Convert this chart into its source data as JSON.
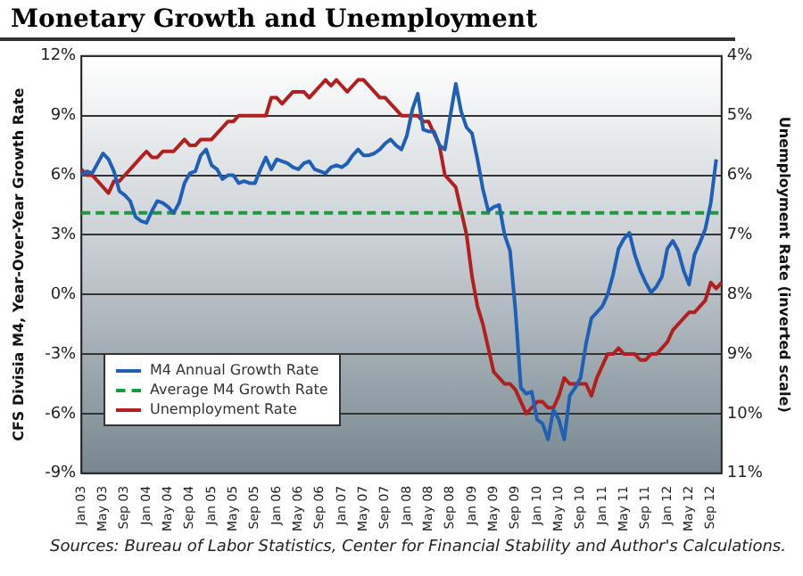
{
  "chart_data": {
    "type": "line",
    "title": "Monetary Growth and Unemployment",
    "ylabel": "CFS Divisia M4, Year-Over-Year Growth Rate",
    "y2label": "Unemployment Rate (inverted scale)",
    "annotations": [
      "Sources: Bureau of Labor Statistics, Center for Financial Stability and Author's Calculations."
    ],
    "categories": [
      "Jan 03",
      null,
      null,
      null,
      "May 03",
      null,
      null,
      null,
      "Sep 03",
      null,
      null,
      null,
      "Jan 04",
      null,
      null,
      null,
      "May 04",
      null,
      null,
      null,
      "Sep 04",
      null,
      null,
      null,
      "Jan 05",
      null,
      null,
      null,
      "May 05",
      null,
      null,
      null,
      "Sep 05",
      null,
      null,
      null,
      "Jan 06",
      null,
      null,
      null,
      "May 06",
      null,
      null,
      null,
      "Sep 06",
      null,
      null,
      null,
      "Jan 07",
      null,
      null,
      null,
      "May 07",
      null,
      null,
      null,
      "Sep 07",
      null,
      null,
      null,
      "Jan 08",
      null,
      null,
      null,
      "May 08",
      null,
      null,
      null,
      "Sep 08",
      null,
      null,
      null,
      "Jan 09",
      null,
      null,
      null,
      "May 09",
      null,
      null,
      null,
      "Sep 09",
      null,
      null,
      null,
      "Jan 10",
      null,
      null,
      null,
      "May 10",
      null,
      null,
      null,
      "Sep 10",
      null,
      null,
      null,
      "Jan 11",
      null,
      null,
      null,
      "May 11",
      null,
      null,
      null,
      "Sep 11",
      null,
      null,
      null,
      "Jan 12",
      null,
      null,
      null,
      "May 12",
      null,
      null,
      null,
      "Sep 12",
      null,
      null
    ],
    "series": [
      {
        "name": "M4 Annual Growth Rate",
        "color": "#1f5fb4",
        "values": [
          6.0,
          6.2,
          6.1,
          6.6,
          7.1,
          6.8,
          6.2,
          5.2,
          5.0,
          4.7,
          3.9,
          3.7,
          3.6,
          4.2,
          4.7,
          4.6,
          4.4,
          4.1,
          4.6,
          5.6,
          6.1,
          6.2,
          7.0,
          7.3,
          6.5,
          6.3,
          5.8,
          6.0,
          6.0,
          5.6,
          5.7,
          5.6,
          5.6,
          6.3,
          6.9,
          6.3,
          6.8,
          6.7,
          6.6,
          6.4,
          6.3,
          6.6,
          6.7,
          6.3,
          6.2,
          6.1,
          6.4,
          6.5,
          6.4,
          6.6,
          7.0,
          7.3,
          7.0,
          7.0,
          7.1,
          7.3,
          7.6,
          7.8,
          7.5,
          7.3,
          8.0,
          9.3,
          10.1,
          8.3,
          8.2,
          8.2,
          7.5,
          7.3,
          9.0,
          10.6,
          9.2,
          8.4,
          8.1,
          6.8,
          5.3,
          4.2,
          4.4,
          4.5,
          3.0,
          2.2,
          -0.8,
          -4.7,
          -5.0,
          -4.9,
          -6.3,
          -6.5,
          -7.3,
          -5.8,
          -6.3,
          -7.3,
          -5.1,
          -4.7,
          -4.2,
          -2.5,
          -1.2,
          -0.9,
          -0.6,
          0.0,
          1.0,
          2.3,
          2.8,
          3.1,
          2.0,
          1.2,
          0.6,
          0.1,
          0.4,
          0.9,
          2.3,
          2.7,
          2.2,
          1.2,
          0.5,
          2.0,
          2.6,
          3.3,
          4.6,
          6.8,
          null
        ]
      },
      {
        "name": "Average M4 Growth Rate",
        "color": "#1e9a3c",
        "line_style": "dashed",
        "values": [
          4.1,
          4.1,
          4.1,
          4.1,
          4.1,
          4.1,
          4.1,
          4.1,
          4.1,
          4.1,
          4.1,
          4.1,
          4.1,
          4.1,
          4.1,
          4.1,
          4.1,
          4.1,
          4.1,
          4.1,
          4.1,
          4.1,
          4.1,
          4.1,
          4.1,
          4.1,
          4.1,
          4.1,
          4.1,
          4.1,
          4.1,
          4.1,
          4.1,
          4.1,
          4.1,
          4.1,
          4.1,
          4.1,
          4.1,
          4.1,
          4.1,
          4.1,
          4.1,
          4.1,
          4.1,
          4.1,
          4.1,
          4.1,
          4.1,
          4.1,
          4.1,
          4.1,
          4.1,
          4.1,
          4.1,
          4.1,
          4.1,
          4.1,
          4.1,
          4.1,
          4.1,
          4.1,
          4.1,
          4.1,
          4.1,
          4.1,
          4.1,
          4.1,
          4.1,
          4.1,
          4.1,
          4.1,
          4.1,
          4.1,
          4.1,
          4.1,
          4.1,
          4.1,
          4.1,
          4.1,
          4.1,
          4.1,
          4.1,
          4.1,
          4.1,
          4.1,
          4.1,
          4.1,
          4.1,
          4.1,
          4.1,
          4.1,
          4.1,
          4.1,
          4.1,
          4.1,
          4.1,
          4.1,
          4.1,
          4.1,
          4.1,
          4.1,
          4.1,
          4.1,
          4.1,
          4.1,
          4.1,
          4.1,
          4.1,
          4.1,
          4.1,
          4.1,
          4.1,
          4.1,
          4.1,
          4.1,
          4.1,
          4.1,
          4.1
        ]
      },
      {
        "name": "Unemployment Rate",
        "color": "#b0201e",
        "axis": "y2",
        "values": [
          5.9,
          6.0,
          6.0,
          6.1,
          6.2,
          6.3,
          6.1,
          6.1,
          6.0,
          5.9,
          5.8,
          5.7,
          5.6,
          5.7,
          5.7,
          5.6,
          5.6,
          5.6,
          5.5,
          5.4,
          5.5,
          5.5,
          5.4,
          5.4,
          5.4,
          5.3,
          5.2,
          5.1,
          5.1,
          5.0,
          5.0,
          5.0,
          5.0,
          5.0,
          5.0,
          4.7,
          4.7,
          4.8,
          4.7,
          4.6,
          4.6,
          4.6,
          4.7,
          4.6,
          4.5,
          4.4,
          4.5,
          4.4,
          4.5,
          4.6,
          4.5,
          4.4,
          4.4,
          4.5,
          4.6,
          4.7,
          4.7,
          4.8,
          4.9,
          5.0,
          5.0,
          5.0,
          5.0,
          5.1,
          5.1,
          5.3,
          5.5,
          6.0,
          6.1,
          6.2,
          6.6,
          7.0,
          7.7,
          8.2,
          8.5,
          8.9,
          9.3,
          9.4,
          9.5,
          9.5,
          9.6,
          9.8,
          10.0,
          9.9,
          9.8,
          9.8,
          9.9,
          9.9,
          9.7,
          9.4,
          9.5,
          9.5,
          9.5,
          9.5,
          9.7,
          9.4,
          9.2,
          9.0,
          9.0,
          8.9,
          9.0,
          9.0,
          9.0,
          9.1,
          9.1,
          9.0,
          9.0,
          8.9,
          8.8,
          8.6,
          8.5,
          8.4,
          8.3,
          8.3,
          8.2,
          8.1,
          7.8,
          7.9,
          7.8
        ]
      }
    ],
    "ylim": [
      -9,
      12
    ],
    "yticks": [
      {
        "value": -9,
        "label": "-9%"
      },
      {
        "value": -6,
        "label": "-6%"
      },
      {
        "value": -3,
        "label": "-3%"
      },
      {
        "value": 0,
        "label": "0%"
      },
      {
        "value": 3,
        "label": "3%"
      },
      {
        "value": 6,
        "label": "6%"
      },
      {
        "value": 9,
        "label": "9%"
      },
      {
        "value": 12,
        "label": "12%"
      }
    ],
    "y2lim": [
      11,
      4
    ],
    "y2ticks": [
      {
        "value": 11,
        "label": "11%"
      },
      {
        "value": 10,
        "label": "10%"
      },
      {
        "value": 9,
        "label": "9%"
      },
      {
        "value": 8,
        "label": "8%"
      },
      {
        "value": 7,
        "label": "7%"
      },
      {
        "value": 6,
        "label": "6%"
      },
      {
        "value": 5,
        "label": "5%"
      },
      {
        "value": 4,
        "label": "4%"
      }
    ],
    "grid": "y",
    "legend": "bottom left",
    "marker": "none"
  }
}
